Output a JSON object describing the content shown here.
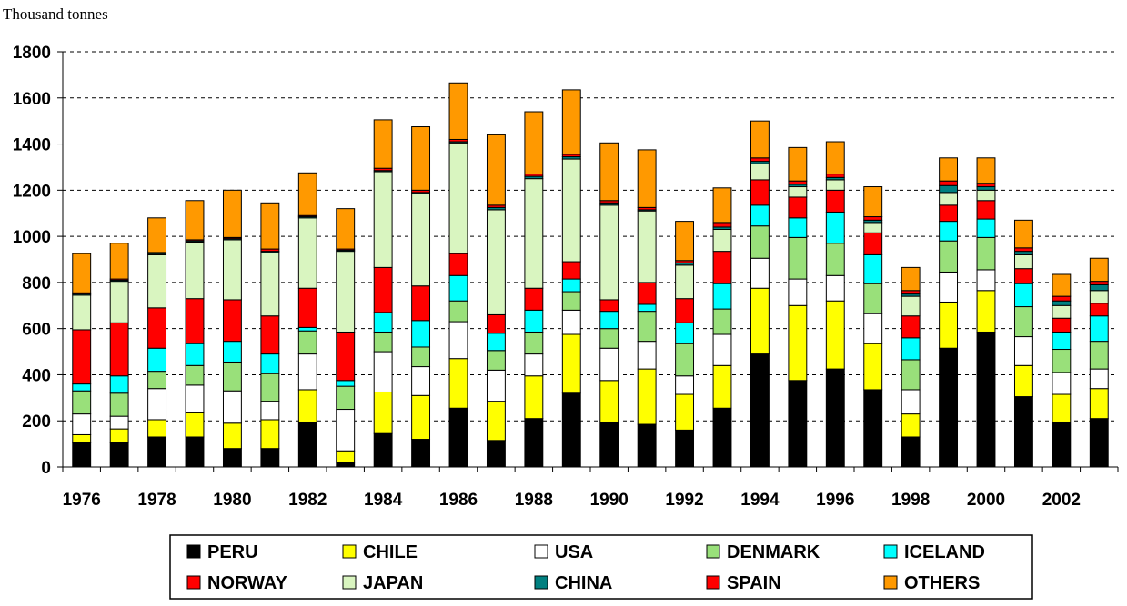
{
  "chart_data": {
    "type": "bar",
    "stacked": true,
    "unit_label": "Thousand tonnes",
    "ylim": [
      0,
      1800
    ],
    "yticks": [
      0,
      200,
      400,
      600,
      800,
      1000,
      1200,
      1400,
      1600,
      1800
    ],
    "ytick_labels": [
      "0",
      "200",
      "400",
      "600",
      "800",
      "1000",
      "1200",
      "1400",
      "1600",
      "1800"
    ],
    "grid": "horizontal-dashed",
    "legend_position": "bottom",
    "categories": [
      "1976",
      "1977",
      "1978",
      "1979",
      "1980",
      "1981",
      "1982",
      "1983",
      "1984",
      "1985",
      "1986",
      "1987",
      "1988",
      "1989",
      "1990",
      "1991",
      "1992",
      "1993",
      "1994",
      "1995",
      "1996",
      "1997",
      "1998",
      "1999",
      "2000",
      "2001",
      "2002",
      "2003"
    ],
    "xtick_labels": [
      "1976",
      "",
      "1978",
      "",
      "1980",
      "",
      "1982",
      "",
      "1984",
      "",
      "1986",
      "",
      "1988",
      "",
      "1990",
      "",
      "1992",
      "",
      "1994",
      "",
      "1996",
      "",
      "1998",
      "",
      "2000",
      "",
      "2002",
      ""
    ],
    "series": [
      {
        "name": "PERU",
        "color": "#000000",
        "values": [
          105,
          105,
          130,
          130,
          80,
          80,
          195,
          20,
          145,
          120,
          255,
          115,
          210,
          320,
          195,
          185,
          160,
          255,
          490,
          375,
          425,
          335,
          130,
          515,
          585,
          305,
          195,
          210
        ]
      },
      {
        "name": "CHILE",
        "color": "#ffff00",
        "values": [
          35,
          60,
          75,
          105,
          110,
          125,
          140,
          50,
          180,
          190,
          215,
          170,
          185,
          255,
          180,
          240,
          155,
          185,
          285,
          325,
          295,
          200,
          100,
          200,
          180,
          135,
          120,
          130
        ]
      },
      {
        "name": "USA",
        "color": "#ffffff",
        "values": [
          90,
          55,
          135,
          120,
          140,
          80,
          155,
          180,
          175,
          125,
          160,
          135,
          95,
          105,
          140,
          120,
          80,
          135,
          130,
          115,
          110,
          130,
          105,
          130,
          90,
          125,
          95,
          85
        ]
      },
      {
        "name": "DENMARK",
        "color": "#99e07a",
        "values": [
          100,
          100,
          75,
          85,
          125,
          120,
          100,
          100,
          85,
          85,
          90,
          85,
          95,
          80,
          85,
          130,
          140,
          110,
          140,
          180,
          140,
          130,
          130,
          135,
          140,
          130,
          100,
          120
        ]
      },
      {
        "name": "ICELAND",
        "color": "#00ffff",
        "values": [
          30,
          75,
          100,
          95,
          90,
          85,
          15,
          25,
          85,
          115,
          110,
          75,
          95,
          55,
          75,
          30,
          90,
          110,
          90,
          85,
          135,
          125,
          95,
          85,
          80,
          100,
          75,
          110
        ]
      },
      {
        "name": "NORWAY",
        "color": "#ff0000",
        "values": [
          235,
          230,
          175,
          195,
          180,
          165,
          170,
          210,
          195,
          150,
          95,
          80,
          95,
          75,
          50,
          95,
          105,
          140,
          110,
          90,
          95,
          95,
          95,
          70,
          80,
          65,
          60,
          55
        ]
      },
      {
        "name": "JAPAN",
        "color": "#d9f5c0",
        "values": [
          150,
          180,
          230,
          245,
          260,
          275,
          305,
          350,
          415,
          400,
          480,
          455,
          475,
          445,
          410,
          310,
          145,
          95,
          70,
          45,
          45,
          45,
          85,
          55,
          45,
          60,
          55,
          55
        ]
      },
      {
        "name": "CHINA",
        "color": "#008080",
        "values": [
          5,
          5,
          5,
          5,
          5,
          5,
          5,
          5,
          5,
          5,
          5,
          10,
          10,
          10,
          10,
          5,
          10,
          10,
          10,
          10,
          10,
          10,
          10,
          30,
          15,
          15,
          20,
          25
        ]
      },
      {
        "name": "SPAIN",
        "color": "#ff0000",
        "values": [
          5,
          5,
          5,
          5,
          5,
          10,
          5,
          5,
          10,
          10,
          10,
          10,
          10,
          10,
          10,
          10,
          10,
          20,
          15,
          15,
          15,
          15,
          15,
          20,
          15,
          15,
          20,
          15
        ]
      },
      {
        "name": "OTHERS",
        "color": "#ff9900",
        "values": [
          170,
          155,
          150,
          170,
          205,
          200,
          185,
          175,
          210,
          275,
          245,
          305,
          270,
          280,
          250,
          250,
          170,
          150,
          160,
          145,
          140,
          130,
          100,
          100,
          110,
          120,
          95,
          100
        ]
      }
    ],
    "legend": [
      {
        "label": "PERU",
        "color": "#000000"
      },
      {
        "label": "CHILE",
        "color": "#ffff00"
      },
      {
        "label": "USA",
        "color": "#ffffff"
      },
      {
        "label": "DENMARK",
        "color": "#99e07a"
      },
      {
        "label": "ICELAND",
        "color": "#00ffff"
      },
      {
        "label": "NORWAY",
        "color": "#ff0000"
      },
      {
        "label": "JAPAN",
        "color": "#d9f5c0"
      },
      {
        "label": "CHINA",
        "color": "#008080"
      },
      {
        "label": "SPAIN",
        "color": "#ff0000"
      },
      {
        "label": "OTHERS",
        "color": "#ff9900"
      }
    ]
  }
}
